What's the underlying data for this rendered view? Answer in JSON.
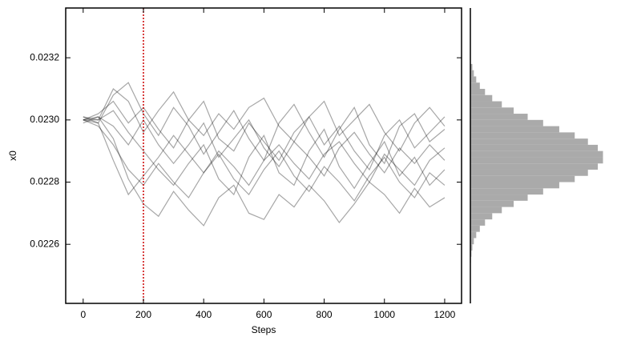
{
  "chart_data": [
    {
      "type": "line",
      "xlabel": "Steps",
      "ylabel": "x0",
      "x": [
        0,
        50,
        100,
        150,
        200,
        250,
        300,
        350,
        400,
        450,
        500,
        550,
        600,
        650,
        700,
        750,
        800,
        850,
        900,
        950,
        1000,
        1050,
        1100,
        1150,
        1200
      ],
      "xlim": [
        -58,
        1256
      ],
      "xticks": [
        0,
        200,
        400,
        600,
        800,
        1000,
        1200
      ],
      "ylim": [
        0.02241,
        0.02336
      ],
      "yticks": [
        0.0226,
        0.0228,
        {
          "value": 0.023,
          "label": "0.0230"
        },
        0.0232
      ],
      "vline": 200,
      "vline_color": "#cc0000",
      "color": "#000000",
      "series": [
        {
          "values": [
            0.023,
            0.023,
            0.02303,
            0.02296,
            0.0229,
            0.02284,
            0.02279,
            0.02286,
            0.02292,
            0.02281,
            0.02276,
            0.02288,
            0.02295,
            0.02283,
            0.02279,
            0.0229,
            0.02297,
            0.02285,
            0.02278,
            0.02286,
            0.02293,
            0.02282,
            0.02288,
            0.02279,
            0.02284
          ]
        },
        {
          "values": [
            0.02301,
            0.02299,
            0.02308,
            0.02312,
            0.02302,
            0.02295,
            0.02304,
            0.02298,
            0.02289,
            0.02296,
            0.02303,
            0.02294,
            0.02287,
            0.02299,
            0.02305,
            0.02296,
            0.02288,
            0.02297,
            0.02304,
            0.02292,
            0.02286,
            0.02298,
            0.02302,
            0.02293,
            0.02297
          ]
        },
        {
          "values": [
            0.02299,
            0.02301,
            0.02294,
            0.02281,
            0.02273,
            0.02269,
            0.02277,
            0.02271,
            0.02266,
            0.02275,
            0.02279,
            0.0227,
            0.02268,
            0.02276,
            0.02272,
            0.02279,
            0.02274,
            0.02267,
            0.02273,
            0.0228,
            0.02276,
            0.0227,
            0.02278,
            0.02272,
            0.02275
          ]
        },
        {
          "values": [
            0.023,
            0.02302,
            0.02306,
            0.02299,
            0.02304,
            0.02297,
            0.02291,
            0.023,
            0.02306,
            0.02294,
            0.0229,
            0.02299,
            0.02293,
            0.02287,
            0.02296,
            0.02301,
            0.02292,
            0.02298,
            0.0229,
            0.02284,
            0.02295,
            0.023,
            0.02291,
            0.02296,
            0.02301
          ]
        },
        {
          "values": [
            0.023,
            0.02298,
            0.02292,
            0.02284,
            0.02279,
            0.02286,
            0.0228,
            0.02275,
            0.02283,
            0.02289,
            0.02281,
            0.02276,
            0.02284,
            0.0229,
            0.02282,
            0.02277,
            0.02285,
            0.0228,
            0.02274,
            0.02282,
            0.02288,
            0.0228,
            0.02275,
            0.02283,
            0.02279
          ]
        },
        {
          "values": [
            0.02301,
            0.023,
            0.0231,
            0.02306,
            0.02296,
            0.02303,
            0.02309,
            0.023,
            0.02295,
            0.02302,
            0.02297,
            0.02304,
            0.02307,
            0.02298,
            0.02293,
            0.02301,
            0.02306,
            0.02295,
            0.023,
            0.02305,
            0.02296,
            0.0229,
            0.02299,
            0.02304,
            0.02298
          ]
        },
        {
          "values": [
            0.023,
            0.02299,
            0.02287,
            0.02276,
            0.02282,
            0.02288,
            0.02295,
            0.02289,
            0.02283,
            0.0229,
            0.02285,
            0.02279,
            0.02287,
            0.02292,
            0.02286,
            0.02281,
            0.02289,
            0.02293,
            0.02286,
            0.0228,
            0.02289,
            0.02284,
            0.02279,
            0.02287,
            0.02291
          ]
        },
        {
          "values": [
            0.023,
            0.02301,
            0.02298,
            0.02292,
            0.023,
            0.02292,
            0.02286,
            0.02292,
            0.02299,
            0.02288,
            0.02294,
            0.023,
            0.02291,
            0.02285,
            0.02293,
            0.02288,
            0.02282,
            0.02291,
            0.02296,
            0.02289,
            0.02283,
            0.02291,
            0.02286,
            0.02292,
            0.02287
          ]
        }
      ]
    },
    {
      "type": "histogram",
      "orientation": "horizontal",
      "color": "#aaaaaa",
      "bins": [
        0.02254,
        0.02256,
        0.02258,
        0.0226,
        0.02262,
        0.02264,
        0.02266,
        0.02268,
        0.0227,
        0.02272,
        0.02274,
        0.02276,
        0.02278,
        0.0228,
        0.02282,
        0.02284,
        0.02286,
        0.02288,
        0.0229,
        0.02292,
        0.02294,
        0.02296,
        0.02298,
        0.023,
        0.02302,
        0.02304,
        0.02306,
        0.02308,
        0.0231,
        0.02312,
        0.02314,
        0.02316,
        0.02318
      ],
      "counts": [
        0.4,
        0.8,
        1.5,
        2.6,
        4.4,
        7.1,
        11,
        16.4,
        23.6,
        32.5,
        43,
        54.6,
        66.7,
        78.3,
        88.2,
        95.6,
        99.5,
        99.5,
        95.6,
        88.2,
        78.3,
        66.7,
        54.6,
        43,
        32.5,
        23.6,
        16.4,
        11,
        7.1,
        4.4,
        2.6,
        1.5
      ],
      "xlim": [
        0,
        104
      ],
      "ylim": [
        0.02241,
        0.02336
      ]
    }
  ]
}
